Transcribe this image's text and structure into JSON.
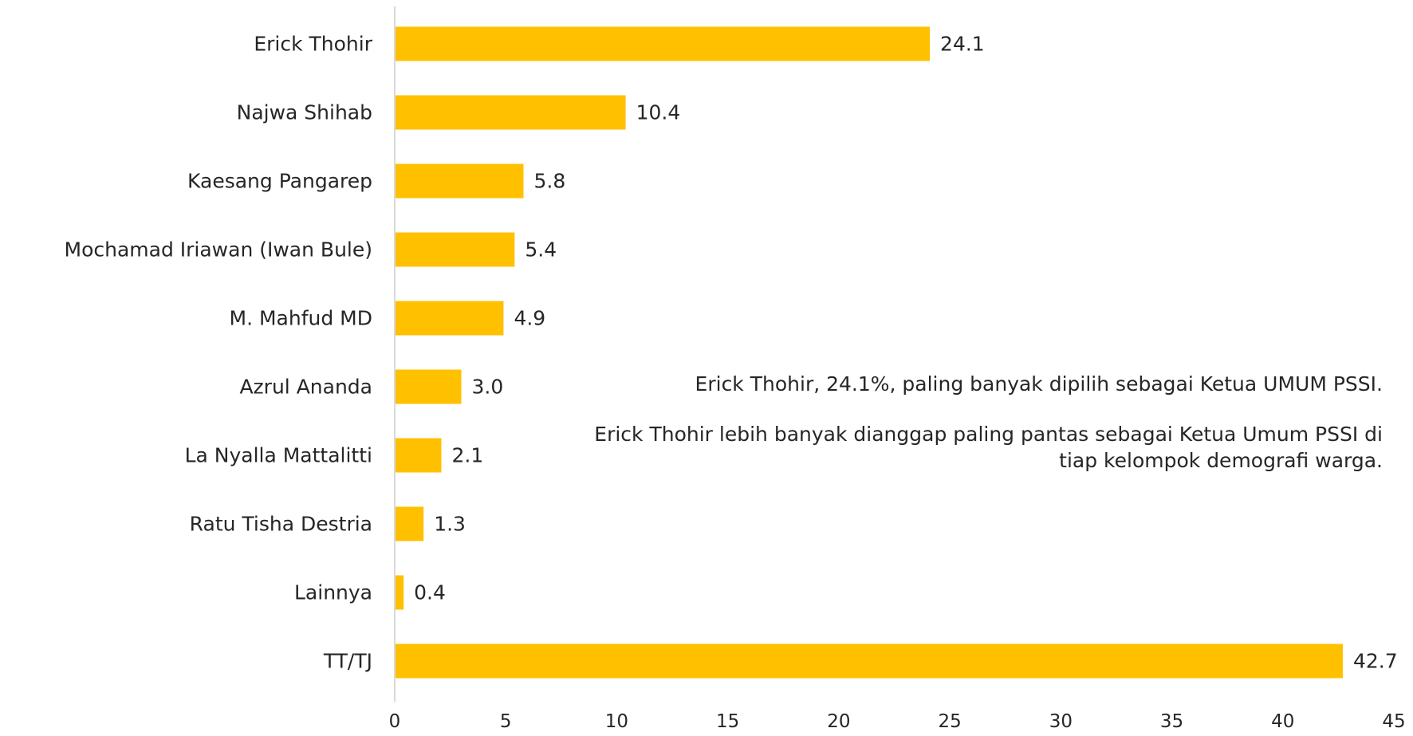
{
  "chart_data": {
    "type": "bar",
    "orientation": "horizontal",
    "categories": [
      "Erick Thohir",
      "Najwa Shihab",
      "Kaesang Pangarep",
      "Mochamad Iriawan (Iwan Bule)",
      "M. Mahfud MD",
      "Azrul Ananda",
      "La Nyalla Mattalitti",
      "Ratu Tisha Destria",
      "Lainnya",
      "TT/TJ"
    ],
    "values": [
      24.1,
      10.4,
      5.8,
      5.4,
      4.9,
      3.0,
      2.1,
      1.3,
      0.4,
      42.7
    ],
    "value_labels": [
      "24.1",
      "10.4",
      "5.8",
      "5.4",
      "4.9",
      "3.0",
      "2.1",
      "1.3",
      "0.4",
      "42.7"
    ],
    "xlim": [
      0,
      45
    ],
    "xticks": [
      0,
      5,
      10,
      15,
      20,
      25,
      30,
      35,
      40,
      45
    ],
    "bar_color": "#FFC000",
    "grid": false,
    "annotations": [
      "Erick Thohir, 24.1%, paling banyak dipilih sebagai Ketua UMUM PSSI.",
      "Erick Thohir lebih banyak dianggap paling pantas sebagai Ketua Umum PSSI di tiap kelompok demografi warga."
    ]
  }
}
